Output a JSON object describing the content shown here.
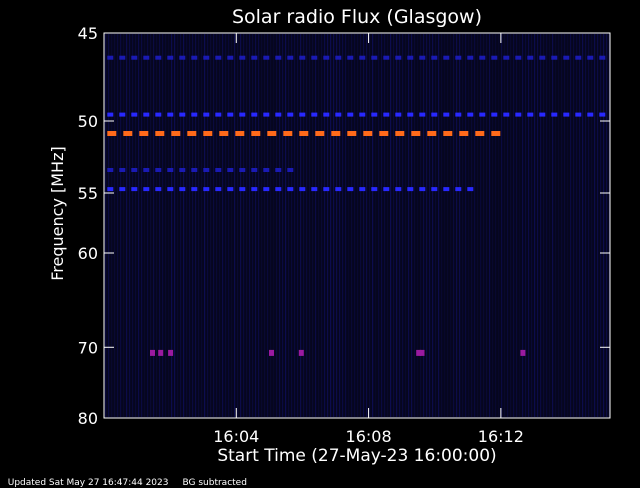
{
  "chart_data": {
    "type": "heatmap",
    "title": "Solar radio Flux (Glasgow)",
    "xlabel": "Start Time (27-May-23 16:00:00)",
    "ylabel": "Frequency [MHz]",
    "x_unit": "minutes after 16:00:00",
    "xlim": [
      0,
      15.3
    ],
    "ylim": [
      45,
      80
    ],
    "y_ticks": [
      45,
      50,
      55,
      60,
      70,
      80
    ],
    "x_ticks": [
      {
        "value": 4,
        "label": "16:04"
      },
      {
        "value": 8,
        "label": "16:08"
      },
      {
        "value": 12,
        "label": "16:12"
      }
    ],
    "colors": {
      "background": "#000000",
      "plot_background": "#06061e",
      "low_intensity": "#1a1ab4",
      "mid_intensity": "#2828ff",
      "high_intensity": "#ff6a1a",
      "burst": "#9a1aa0",
      "axes": "#ffffff"
    },
    "bands": [
      {
        "freq": 46.3,
        "x_start": 0.1,
        "x_end": 15.2,
        "level": "low",
        "style": "dashed"
      },
      {
        "freq": 49.6,
        "x_start": 0.1,
        "x_end": 15.2,
        "level": "mid",
        "style": "dashed"
      },
      {
        "freq": 50.8,
        "x_start": 0.1,
        "x_end": 12.0,
        "level": "high",
        "style": "dashed"
      },
      {
        "freq": 53.3,
        "x_start": 0.1,
        "x_end": 5.8,
        "level": "low",
        "style": "dashed"
      },
      {
        "freq": 54.7,
        "x_start": 0.1,
        "x_end": 11.3,
        "level": "mid",
        "style": "dashed"
      }
    ],
    "bursts": [
      {
        "t": 1.45,
        "freq": 70.7
      },
      {
        "t": 1.7,
        "freq": 70.7
      },
      {
        "t": 2.0,
        "freq": 70.7
      },
      {
        "t": 5.05,
        "freq": 70.7
      },
      {
        "t": 5.95,
        "freq": 70.7
      },
      {
        "t": 9.5,
        "freq": 70.7
      },
      {
        "t": 9.6,
        "freq": 70.7
      },
      {
        "t": 12.65,
        "freq": 70.7
      }
    ]
  },
  "footer": {
    "updated": "Updated Sat May 27 16:47:44 2023",
    "note": "BG subtracted"
  }
}
